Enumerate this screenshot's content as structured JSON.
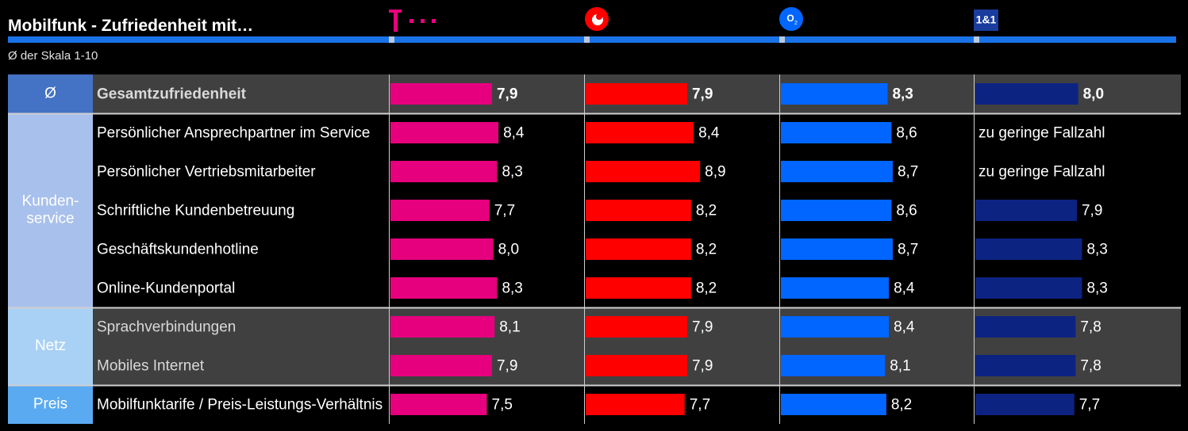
{
  "title": "Mobilfunk - Zufriedenheit mit…",
  "subtitle": "Ø der Skala 1-10",
  "colors": {
    "telekom": "#e6007e",
    "vodafone": "#ff0000",
    "o2": "#0066ff",
    "one_and_one": "#0d2382",
    "group_kundenservice": "#a8c0ec",
    "group_netz": "#a9d1f5",
    "group_preis": "#5aaaf2",
    "group_avg": "#4472c4"
  },
  "providers": [
    {
      "key": "telekom",
      "logo_icon": "telekom-logo-icon",
      "logo_text": "T · · ·"
    },
    {
      "key": "vodafone",
      "logo_icon": "vodafone-logo-icon",
      "logo_text": ""
    },
    {
      "key": "o2",
      "logo_icon": "o2-logo-icon",
      "logo_text": "O₂"
    },
    {
      "key": "one_and_one",
      "logo_icon": "one-and-one-logo-icon",
      "logo_text": "1&1"
    }
  ],
  "no_data_text": "zu geringe Fallzahl",
  "chart_data": {
    "type": "bar",
    "orientation": "horizontal",
    "title": "Mobilfunk - Zufriedenheit mit…",
    "subtitle": "Ø der Skala 1-10",
    "xlim": [
      0,
      10
    ],
    "groups": [
      {
        "label": "Ø",
        "rows": [
          "Gesamtzufriedenheit"
        ]
      },
      {
        "label": "Kunden-\nservice",
        "rows": [
          "Persönlicher Ansprechpartner im Service",
          "Persönlicher Vertriebsmitarbeiter",
          "Schriftliche Kundenbetreuung",
          "Geschäftskundenhotline",
          "Online-Kundenportal"
        ]
      },
      {
        "label": "Netz",
        "rows": [
          "Sprachverbindungen",
          "Mobiles Internet"
        ]
      },
      {
        "label": "Preis",
        "rows": [
          "Mobilfunktarife / Preis-Leistungs-Verhältnis"
        ]
      }
    ],
    "categories": [
      "Gesamtzufriedenheit",
      "Persönlicher Ansprechpartner im Service",
      "Persönlicher Vertriebsmitarbeiter",
      "Schriftliche Kundenbetreuung",
      "Geschäftskundenhotline",
      "Online-Kundenportal",
      "Sprachverbindungen",
      "Mobiles Internet",
      "Mobilfunktarife / Preis-Leistungs-Verhältnis"
    ],
    "series": [
      {
        "key": "telekom",
        "values": [
          7.9,
          8.4,
          8.3,
          7.7,
          8.0,
          8.3,
          8.1,
          7.9,
          7.5
        ]
      },
      {
        "key": "vodafone",
        "values": [
          7.9,
          8.4,
          8.9,
          8.2,
          8.2,
          8.2,
          7.9,
          7.9,
          7.7
        ]
      },
      {
        "key": "o2",
        "values": [
          8.3,
          8.6,
          8.7,
          8.6,
          8.7,
          8.4,
          8.4,
          8.1,
          8.2
        ]
      },
      {
        "key": "one_and_one",
        "values": [
          8.0,
          null,
          null,
          7.9,
          8.3,
          8.3,
          7.8,
          7.8,
          7.7
        ]
      }
    ],
    "value_labels": [
      [
        "7,9",
        "8,4",
        "8,3",
        "7,7",
        "8,0",
        "8,3",
        "8,1",
        "7,9",
        "7,5"
      ],
      [
        "7,9",
        "8,4",
        "8,9",
        "8,2",
        "8,2",
        "8,2",
        "7,9",
        "7,9",
        "7,7"
      ],
      [
        "8,3",
        "8,6",
        "8,7",
        "8,6",
        "8,7",
        "8,4",
        "8,4",
        "8,1",
        "8,2"
      ],
      [
        "8,0",
        "zu geringe Fallzahl",
        "zu geringe Fallzahl",
        "7,9",
        "8,3",
        "8,3",
        "7,8",
        "7,8",
        "7,7"
      ]
    ]
  }
}
